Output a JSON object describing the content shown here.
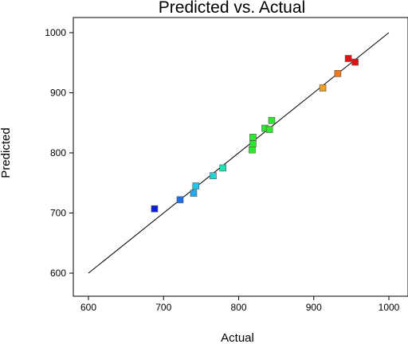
{
  "chart_data": {
    "type": "scatter",
    "title": "Predicted vs. Actual",
    "xlabel": "Actual",
    "ylabel": "Predicted",
    "xlim": [
      600,
      1000
    ],
    "ylim": [
      600,
      1000
    ],
    "xticks": [
      "600",
      "700",
      "800",
      "900",
      "1000"
    ],
    "yticks": [
      "600",
      "700",
      "800",
      "900",
      "1000"
    ],
    "grid": false,
    "reference_line": {
      "x": [
        600,
        1000
      ],
      "y": [
        600,
        1000
      ]
    },
    "colors": {
      "low": "#0a1fd8",
      "mid": "#2ee82e",
      "high": "#e81010",
      "marker_edge": "#555555",
      "line": "#000000"
    },
    "points": [
      {
        "x": 688,
        "y": 707,
        "color": "#0a1fd8"
      },
      {
        "x": 722,
        "y": 722,
        "color": "#1f6fe8"
      },
      {
        "x": 740,
        "y": 733,
        "color": "#22a8ee"
      },
      {
        "x": 743,
        "y": 745,
        "color": "#22c2ee"
      },
      {
        "x": 766,
        "y": 762,
        "color": "#22d6d6"
      },
      {
        "x": 779,
        "y": 775,
        "color": "#22e0b8"
      },
      {
        "x": 818,
        "y": 805,
        "color": "#2ee82e"
      },
      {
        "x": 819,
        "y": 815,
        "color": "#2ee82e"
      },
      {
        "x": 819,
        "y": 826,
        "color": "#2ee82e"
      },
      {
        "x": 835,
        "y": 841,
        "color": "#2ee82e"
      },
      {
        "x": 841,
        "y": 839,
        "color": "#2ee82e"
      },
      {
        "x": 844,
        "y": 854,
        "color": "#2ee82e"
      },
      {
        "x": 912,
        "y": 908,
        "color": "#f0a020"
      },
      {
        "x": 932,
        "y": 932,
        "color": "#f07818"
      },
      {
        "x": 946,
        "y": 957,
        "color": "#e81010"
      },
      {
        "x": 955,
        "y": 951,
        "color": "#e81010"
      }
    ]
  }
}
